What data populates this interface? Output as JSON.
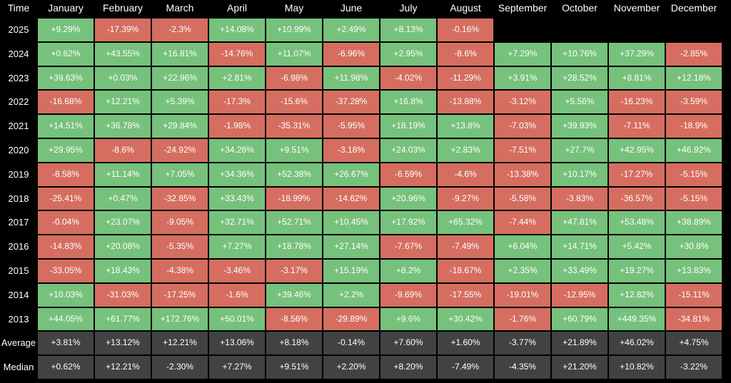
{
  "chart_data": {
    "type": "heatmap",
    "corner_label": "Time",
    "columns": [
      "January",
      "February",
      "March",
      "April",
      "May",
      "June",
      "July",
      "August",
      "September",
      "October",
      "November",
      "December"
    ],
    "rows": [
      {
        "label": "2025",
        "values": [
          "+9.29%",
          "-17.39%",
          "-2.3%",
          "+14.08%",
          "+10.99%",
          "+2.49%",
          "+8.13%",
          "-0.16%",
          "",
          "",
          "",
          ""
        ]
      },
      {
        "label": "2024",
        "values": [
          "+0.62%",
          "+43.55%",
          "+16.81%",
          "-14.76%",
          "+11.07%",
          "-6.96%",
          "+2.95%",
          "-8.6%",
          "+7.29%",
          "+10.76%",
          "+37.29%",
          "-2.85%"
        ]
      },
      {
        "label": "2023",
        "values": [
          "+39.63%",
          "+0.03%",
          "+22.96%",
          "+2.81%",
          "-6.98%",
          "+11.98%",
          "-4.02%",
          "-11.29%",
          "+3.91%",
          "+28.52%",
          "+8.81%",
          "+12.18%"
        ]
      },
      {
        "label": "2022",
        "values": [
          "-16.68%",
          "+12.21%",
          "+5.39%",
          "-17.3%",
          "-15.6%",
          "-37.28%",
          "+16.8%",
          "-13.88%",
          "-3.12%",
          "+5.56%",
          "-16.23%",
          "-3.59%"
        ]
      },
      {
        "label": "2021",
        "values": [
          "+14.51%",
          "+36.78%",
          "+29.84%",
          "-1.98%",
          "-35.31%",
          "-5.95%",
          "+18.19%",
          "+13.8%",
          "-7.03%",
          "+39.93%",
          "-7.11%",
          "-18.9%"
        ]
      },
      {
        "label": "2020",
        "values": [
          "+29.95%",
          "-8.6%",
          "-24.92%",
          "+34.26%",
          "+9.51%",
          "-3.18%",
          "+24.03%",
          "+2.83%",
          "-7.51%",
          "+27.7%",
          "+42.95%",
          "+46.92%"
        ]
      },
      {
        "label": "2019",
        "values": [
          "-8.58%",
          "+11.14%",
          "+7.05%",
          "+34.36%",
          "+52.38%",
          "+26.67%",
          "-6.59%",
          "-4.6%",
          "-13.38%",
          "+10.17%",
          "-17.27%",
          "-5.15%"
        ]
      },
      {
        "label": "2018",
        "values": [
          "-25.41%",
          "+0.47%",
          "-32.85%",
          "+33.43%",
          "-18.99%",
          "-14.62%",
          "+20.96%",
          "-9.27%",
          "-5.58%",
          "-3.83%",
          "-36.57%",
          "-5.15%"
        ]
      },
      {
        "label": "2017",
        "values": [
          "-0.04%",
          "+23.07%",
          "-9.05%",
          "+32.71%",
          "+52.71%",
          "+10.45%",
          "+17.92%",
          "+65.32%",
          "-7.44%",
          "+47.81%",
          "+53.48%",
          "+38.89%"
        ]
      },
      {
        "label": "2016",
        "values": [
          "-14.83%",
          "+20.08%",
          "-5.35%",
          "+7.27%",
          "+18.78%",
          "+27.14%",
          "-7.67%",
          "-7.49%",
          "+6.04%",
          "+14.71%",
          "+5.42%",
          "+30.8%"
        ]
      },
      {
        "label": "2015",
        "values": [
          "-33.05%",
          "+18.43%",
          "-4.38%",
          "-3.46%",
          "-3.17%",
          "+15.19%",
          "+8.2%",
          "-18.67%",
          "+2.35%",
          "+33.49%",
          "+19.27%",
          "+13.83%"
        ]
      },
      {
        "label": "2014",
        "values": [
          "+10.03%",
          "-31.03%",
          "-17.25%",
          "-1.6%",
          "+39.46%",
          "+2.2%",
          "-9.69%",
          "-17.55%",
          "-19.01%",
          "-12.95%",
          "+12.82%",
          "-15.11%"
        ]
      },
      {
        "label": "2013",
        "values": [
          "+44.05%",
          "+61.77%",
          "+172.76%",
          "+50.01%",
          "-8.56%",
          "-29.89%",
          "+9.6%",
          "+30.42%",
          "-1.76%",
          "+60.79%",
          "+449.35%",
          "-34.81%"
        ]
      }
    ],
    "summary_rows": [
      {
        "label": "Average",
        "values": [
          "+3.81%",
          "+13.12%",
          "+12.21%",
          "+13.06%",
          "+8.18%",
          "-0.14%",
          "+7.60%",
          "+1.60%",
          "-3.77%",
          "+21.89%",
          "+46.02%",
          "+4.75%"
        ]
      },
      {
        "label": "Median",
        "values": [
          "+0.62%",
          "+12.21%",
          "-2.30%",
          "+7.27%",
          "+9.51%",
          "+2.20%",
          "+8.20%",
          "-7.49%",
          "-4.35%",
          "+21.20%",
          "+10.82%",
          "-3.22%"
        ]
      }
    ],
    "colors": {
      "positive": "#76c17c",
      "negative": "#d56e60",
      "summary": "#404244",
      "background": "#000000",
      "text": "#ffffff"
    }
  }
}
